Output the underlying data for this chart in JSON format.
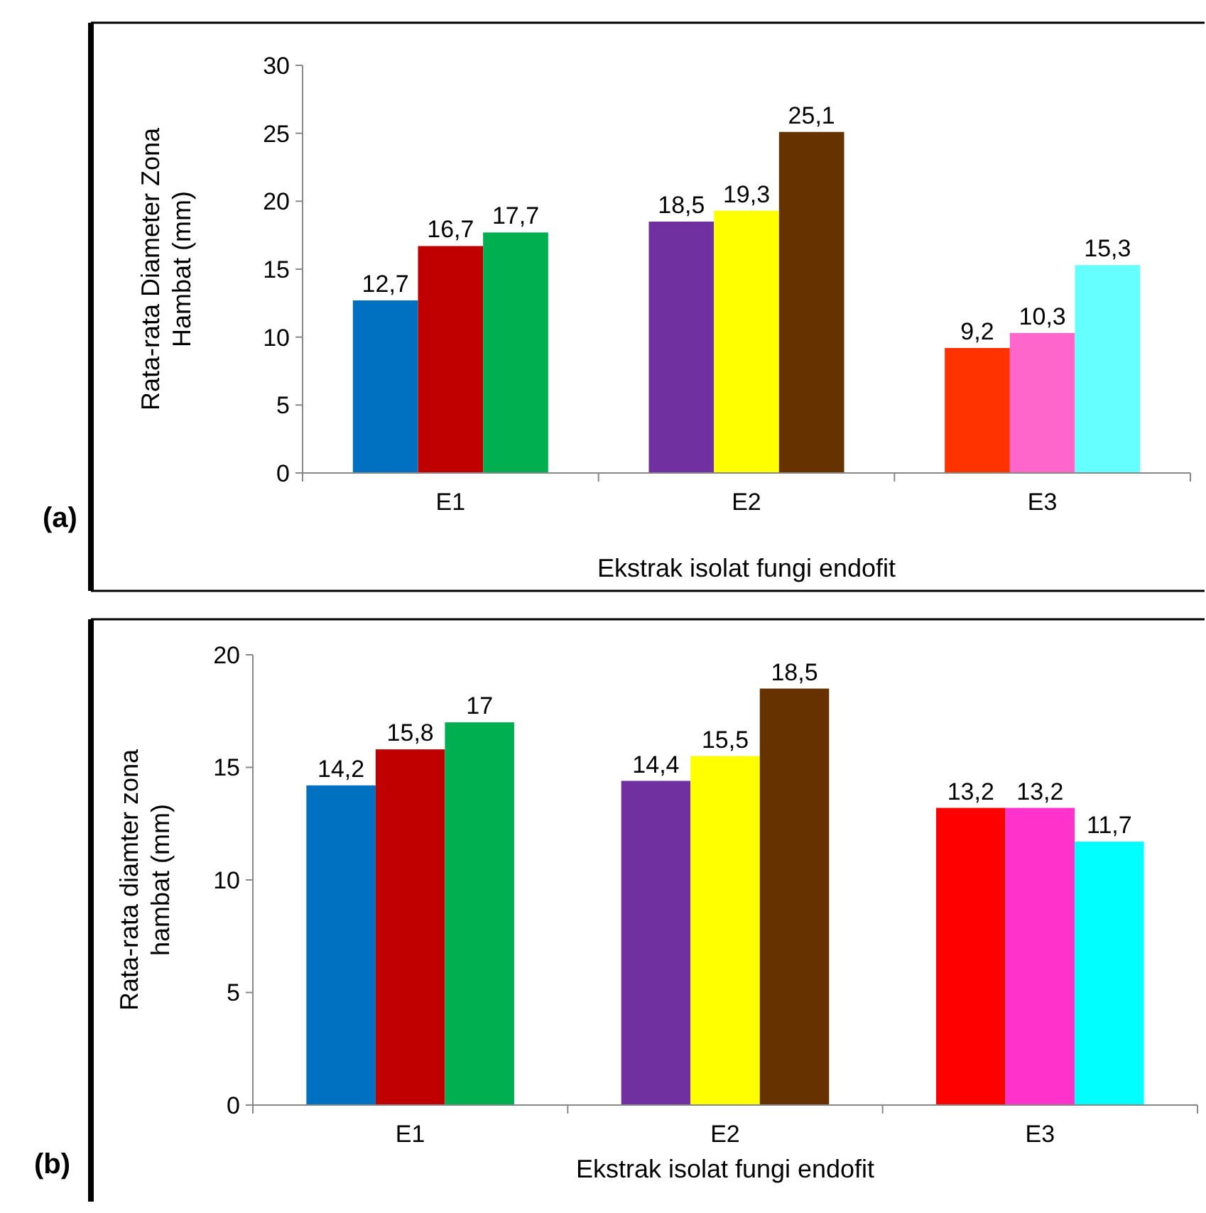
{
  "chart_data": [
    {
      "type": "bar",
      "categories": [
        "E1",
        "E2",
        "E3"
      ],
      "xlabel": "Ekstrak isolat fungi endofit",
      "ylabel": "Rata-rata Diameter Zona Hambat (mm)",
      "ylim": [
        0,
        30
      ],
      "yticks": [
        0,
        5,
        10,
        15,
        20,
        25,
        30
      ],
      "annotations": [
        "(a)"
      ],
      "series": [
        {
          "values": [
            12.7,
            18.5,
            9.2
          ],
          "colors": [
            "#0070c0",
            "#7030a0",
            "#ff3300"
          ],
          "value_labels": [
            "12,7",
            "18,5",
            "9,2"
          ]
        },
        {
          "values": [
            16.7,
            19.3,
            10.3
          ],
          "colors": [
            "#c00000",
            "#ffff00",
            "#ff66cc"
          ],
          "value_labels": [
            "16,7",
            "19,3",
            "10,3"
          ]
        },
        {
          "values": [
            17.7,
            25.1,
            15.3
          ],
          "colors": [
            "#00b050",
            "#663300",
            "#66ffff"
          ],
          "value_labels": [
            "17,7",
            "25,1",
            "15,3"
          ]
        }
      ]
    },
    {
      "type": "bar",
      "categories": [
        "E1",
        "E2",
        "E3"
      ],
      "xlabel": "Ekstrak isolat fungi endofit",
      "ylabel": "Rata-rata diamter zona hambat (mm)",
      "ylim": [
        0,
        20
      ],
      "yticks": [
        0,
        5,
        10,
        15,
        20
      ],
      "annotations": [
        "(b)"
      ],
      "series": [
        {
          "values": [
            14.2,
            14.4,
            13.2
          ],
          "colors": [
            "#0070c0",
            "#7030a0",
            "#ff0000"
          ],
          "value_labels": [
            "14,2",
            "14,4",
            "13,2"
          ]
        },
        {
          "values": [
            15.8,
            15.5,
            13.2
          ],
          "colors": [
            "#c00000",
            "#ffff00",
            "#ff33cc"
          ],
          "value_labels": [
            "15,8",
            "15,5",
            "13,2"
          ]
        },
        {
          "values": [
            17,
            18.5,
            11.7
          ],
          "colors": [
            "#00b050",
            "#663300",
            "#00ffff"
          ],
          "value_labels": [
            "17",
            "18,5",
            "11,7"
          ]
        }
      ]
    }
  ]
}
